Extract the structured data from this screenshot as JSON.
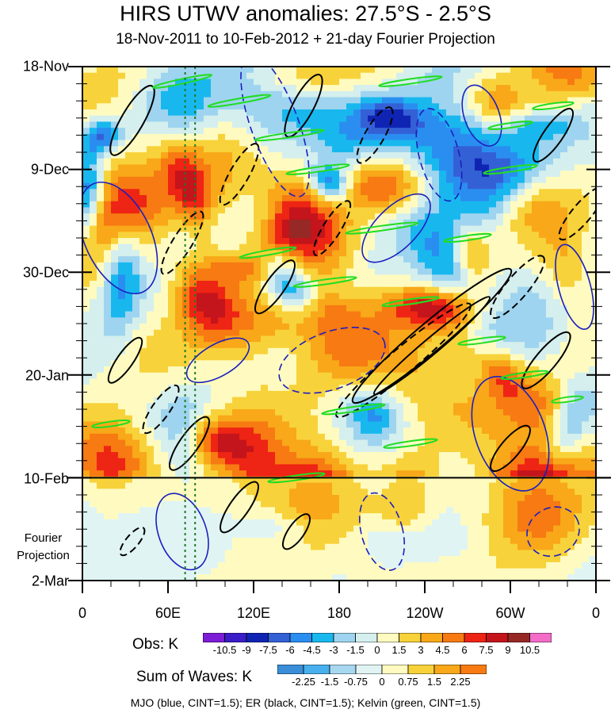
{
  "chart_data": {
    "type": "heatmap",
    "title": "HIRS UTWV anomalies: 27.5°S - 2.5°S",
    "subtitle": "18-Nov-2011 to 10-Feb-2012 + 21-day Fourier Projection",
    "y_tick_labels": [
      "18-Nov",
      "9-Dec",
      "30-Dec",
      "20-Jan",
      "10-Feb",
      "2-Mar"
    ],
    "x_tick_labels": [
      "0",
      "60E",
      "120E",
      "180",
      "120W",
      "60W",
      "0"
    ],
    "x_range_deg_east": [
      0,
      360
    ],
    "y_range_days": [
      0,
      105
    ],
    "y_tick_days": [
      0,
      21,
      42,
      63,
      84,
      105
    ],
    "projection_start_day": 84,
    "projection_label": "Fourier Projection",
    "vertical_reference_lines_deg_east": [
      72,
      79
    ],
    "obs_colorbar": {
      "label": "Obs: K",
      "levels": [
        -10.5,
        -9,
        -7.5,
        -6,
        -4.5,
        -3,
        -1.5,
        0,
        1.5,
        3,
        4.5,
        6,
        7.5,
        9,
        10.5
      ],
      "tick_labels": [
        "-10.5",
        "-9",
        "-7.5",
        "-6",
        "-4.5",
        "-3",
        "-1.5",
        "0",
        "1.5",
        "3",
        "4.5",
        "6",
        "7.5",
        "9",
        "10.5"
      ],
      "colors": [
        "#7d1cd6",
        "#3a1cc8",
        "#1024b4",
        "#3460d6",
        "#2a8ef0",
        "#18b8ee",
        "#9ed4ef",
        "#d4efee",
        "#fffbc0",
        "#f8d23a",
        "#f8a818",
        "#f77a12",
        "#ee2414",
        "#c4141c",
        "#962826",
        "#f46cc8"
      ]
    },
    "waves_colorbar": {
      "label": "Sum of Waves: K",
      "levels": [
        -2.25,
        -1.5,
        -0.75,
        0,
        0.75,
        1.5,
        2.25
      ],
      "tick_labels": [
        "-2.25",
        "-1.5",
        "-0.75",
        "0",
        "0.75",
        "1.5",
        "2.25"
      ],
      "colors": [
        "#3a8ed8",
        "#48b0ee",
        "#a8d8f0",
        "#e0f4f4",
        "#fffbc0",
        "#f8d23a",
        "#f8a818",
        "#f77a12"
      ]
    },
    "contour_series": [
      {
        "name": "MJO",
        "color": "#1b1fbf",
        "cint": 1.5
      },
      {
        "name": "ER",
        "color": "#000000",
        "cint": 1.5
      },
      {
        "name": "Kelvin",
        "color": "#22dd22",
        "cint": 1.5
      }
    ],
    "caption": "MJO (blue, CINT=1.5); ER (black, CINT=1.5); Kelvin (green, CINT=1.5)"
  }
}
